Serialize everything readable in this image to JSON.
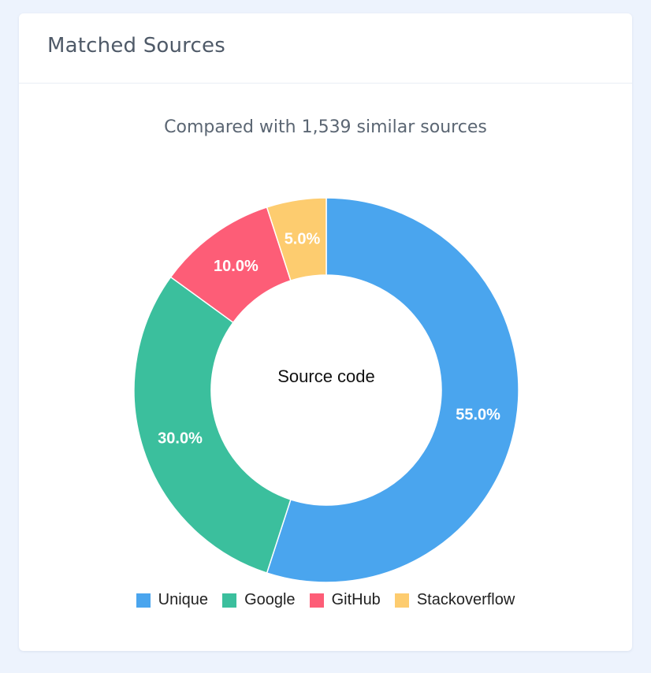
{
  "card": {
    "title": "Matched Sources"
  },
  "chart_data": {
    "type": "pie",
    "subtitle": "Compared with 1,539 similar sources",
    "center_label": "Source code",
    "legend_position": "bottom",
    "slices": [
      {
        "name": "Unique",
        "value": 55.0,
        "label": "55.0%",
        "color": "#4aa5ee"
      },
      {
        "name": "Google",
        "value": 30.0,
        "label": "30.0%",
        "color": "#3bbf9d"
      },
      {
        "name": "GitHub",
        "value": 10.0,
        "label": "10.0%",
        "color": "#fd5d77"
      },
      {
        "name": "Stackoverflow",
        "value": 5.0,
        "label": "5.0%",
        "color": "#fdcc6f"
      }
    ]
  }
}
